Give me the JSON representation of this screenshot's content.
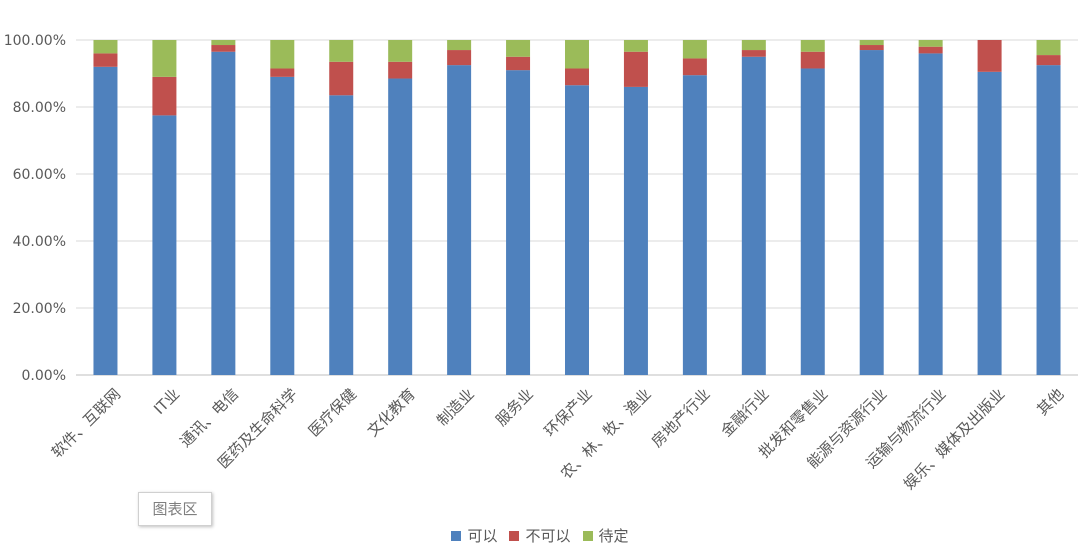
{
  "chart_data": {
    "type": "bar",
    "stacked": true,
    "title": "",
    "xlabel": "",
    "ylabel": "",
    "ylim": [
      0,
      100
    ],
    "yticks": [
      "0.00%",
      "20.00%",
      "40.00%",
      "60.00%",
      "80.00%",
      "100.00%"
    ],
    "grid": true,
    "legend_position": "bottom",
    "categories": [
      "软件、互联网",
      "IT业",
      "通讯、电信",
      "医药及生命科学",
      "医疗保健",
      "文化教育",
      "制造业",
      "服务业",
      "环保产业",
      "农、林、牧、渔业",
      "房地产行业",
      "金融行业",
      "批发和零售业",
      "能源与资源行业",
      "运输与物流行业",
      "娱乐、媒体及出版业",
      "其他"
    ],
    "series": [
      {
        "name": "可以",
        "color": "#4f81bd",
        "values": [
          92,
          77.5,
          96.5,
          89,
          83.5,
          88.5,
          92.5,
          91,
          86.5,
          86,
          89.5,
          95,
          91.5,
          97,
          96,
          90.5,
          92.5
        ]
      },
      {
        "name": "不可以",
        "color": "#c0504d",
        "values": [
          4,
          11.5,
          2,
          2.5,
          10,
          5,
          4.5,
          4,
          5,
          10.5,
          5,
          2,
          5,
          1.5,
          2,
          9.5,
          3
        ]
      },
      {
        "name": "待定",
        "color": "#9bbb59",
        "values": [
          4,
          11,
          1.5,
          8.5,
          6.5,
          6.5,
          3,
          5,
          8.5,
          3.5,
          5.5,
          3,
          3.5,
          1.5,
          2,
          0,
          4.5
        ]
      }
    ]
  },
  "chart_area_label": "图表区"
}
